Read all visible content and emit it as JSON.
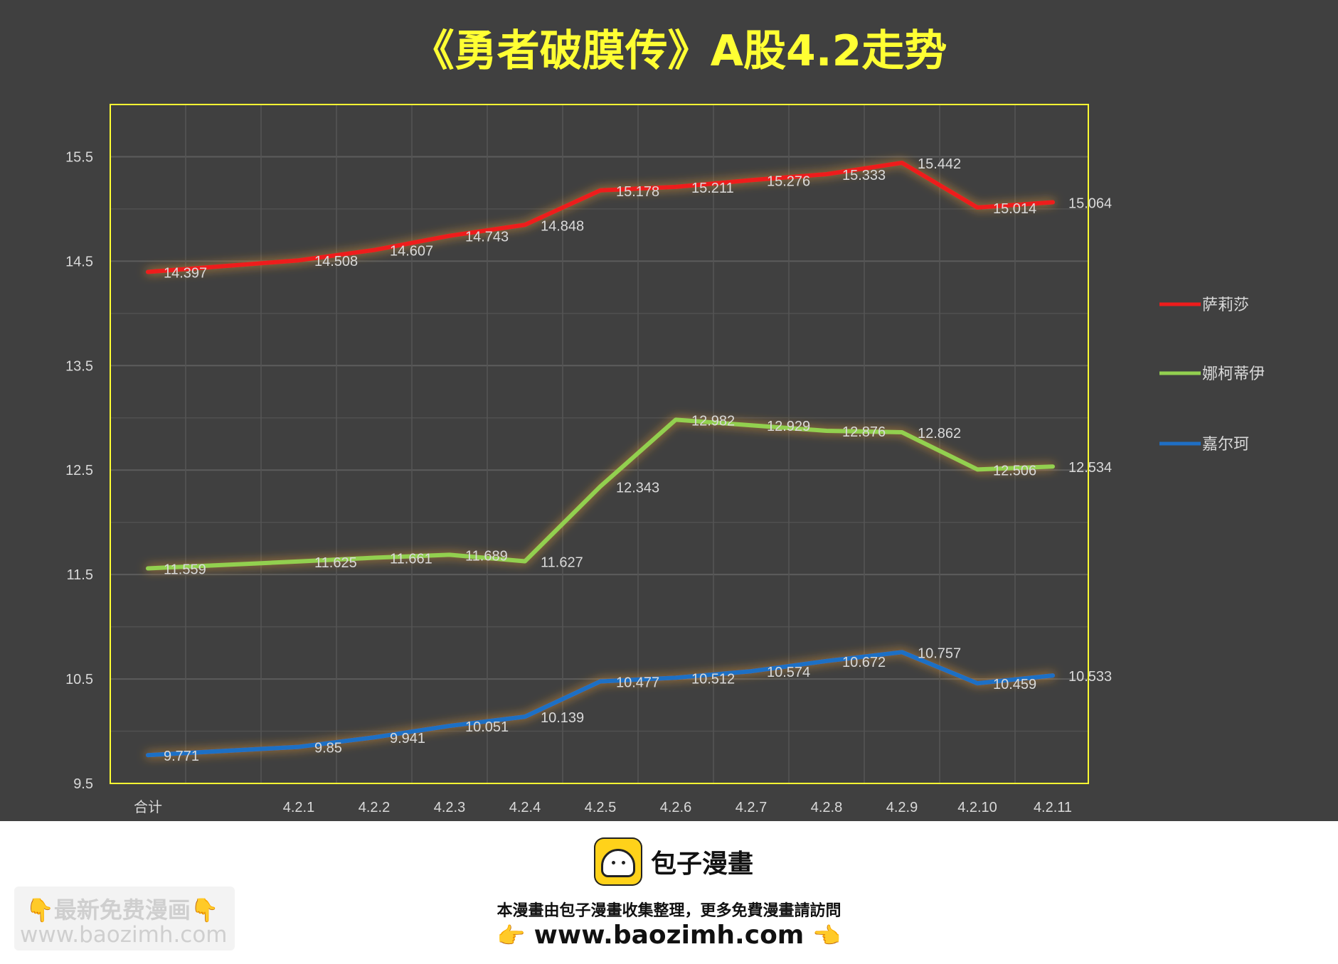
{
  "chart_data": {
    "type": "line",
    "title": "《勇者破膜传》A股4.2走势",
    "categories": [
      "合计",
      "4.2.1",
      "4.2.2",
      "4.2.3",
      "4.2.4",
      "4.2.5",
      "4.2.6",
      "4.2.7",
      "4.2.8",
      "4.2.9",
      "4.2.10",
      "4.2.11"
    ],
    "y_ticks": [
      "9.5",
      "10.5",
      "11.5",
      "12.5",
      "13.5",
      "14.5",
      "15.5"
    ],
    "ylim": [
      9.5,
      16
    ],
    "xlabel": "",
    "ylabel": "",
    "grid": true,
    "legend_position": "right",
    "series": [
      {
        "name": "萨莉莎",
        "color": "#ee1c1c",
        "values": [
          14.397,
          14.508,
          14.607,
          14.743,
          14.848,
          15.178,
          15.211,
          15.276,
          15.333,
          15.442,
          15.014,
          15.064
        ],
        "labels": [
          "14.397",
          "14.508",
          "14.607",
          "14.743",
          "14.848",
          "15.178",
          "15.211",
          "15.276",
          "15.333",
          "15.442",
          "15.014",
          "15.064"
        ]
      },
      {
        "name": "娜柯蒂伊",
        "color": "#92d050",
        "values": [
          11.559,
          11.625,
          11.661,
          11.689,
          11.627,
          12.343,
          12.982,
          12.929,
          12.876,
          12.862,
          12.506,
          12.534
        ],
        "labels": [
          "11.559",
          "11.625",
          "11.661",
          "11.689",
          "11.627",
          "12.343",
          "12.982",
          "12.929",
          "12.876",
          "12.862",
          "12.506",
          "12.534"
        ]
      },
      {
        "name": "嘉尔珂",
        "color": "#1f6fc5",
        "values": [
          9.771,
          9.85,
          9.941,
          10.051,
          10.139,
          10.477,
          10.512,
          10.574,
          10.672,
          10.757,
          10.459,
          10.533
        ],
        "labels": [
          "9.771",
          "9.85",
          "9.941",
          "10.051",
          "10.139",
          "10.477",
          "10.512",
          "10.574",
          "10.672",
          "10.757",
          "10.459",
          "10.533"
        ]
      }
    ]
  },
  "colors": {
    "panel_bg": "#404040",
    "plot_border": "#ffff33",
    "grid": "#5c5c5c",
    "text": "#d9d9d9",
    "title": "#ffff33"
  },
  "footer": {
    "brand_name": "包子漫畫",
    "note": "本漫畫由包子漫畫收集整理，更多免費漫畫請訪問",
    "url": "www.baozimh.com",
    "hand_icon_left": "👉",
    "hand_icon_right": "👈",
    "watermark_line1": "👇最新免费漫画👇",
    "watermark_line2": "www.baozimh.com"
  }
}
